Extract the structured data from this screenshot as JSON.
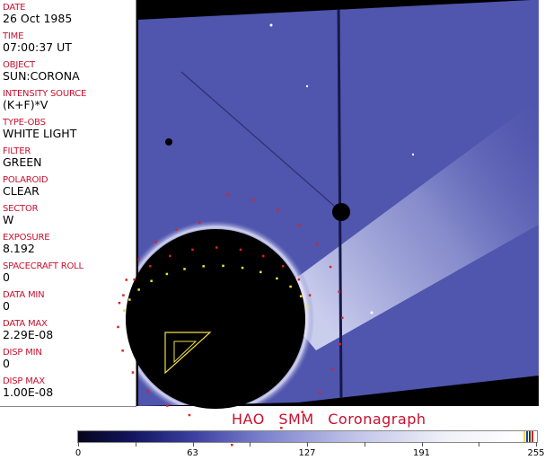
{
  "header_fields": [
    {
      "label": "DATE",
      "value": "26 Oct 1985"
    },
    {
      "label": "TIME",
      "value": "07:00:37 UT"
    },
    {
      "label": "OBJECT",
      "value": "SUN:CORONA"
    },
    {
      "label": "INTENSITY SOURCE",
      "value": "(K+F)*V"
    },
    {
      "label": "TYPE-OBS",
      "value": "WHITE LIGHT"
    },
    {
      "label": "FILTER",
      "value": "GREEN"
    },
    {
      "label": "POLAROID",
      "value": "CLEAR"
    },
    {
      "label": "SECTOR",
      "value": "W"
    },
    {
      "label": "EXPOSURE",
      "value": "8.192"
    },
    {
      "label": "SPACECRAFT ROLL",
      "value": "0"
    },
    {
      "label": "DATA MIN",
      "value": "0"
    },
    {
      "label": "DATA MAX",
      "value": "2.29E-08"
    },
    {
      "label": "DISP MIN",
      "value": "0"
    },
    {
      "label": "DISP MAX",
      "value": "1.00E-08"
    }
  ],
  "title": "HAO SMM Coronagraph",
  "colorbar": {
    "ticks": [
      "0",
      "63",
      "127",
      "191",
      "255"
    ],
    "colors": [
      "#05051a",
      "#3a3fa0",
      "#c0c3e8",
      "#ffffff"
    ]
  },
  "image": {
    "background": "#000000",
    "field_color": "#4a4fa8",
    "overlay_dot_color": "#e02020",
    "overlay_line_color": "#f0e040"
  }
}
